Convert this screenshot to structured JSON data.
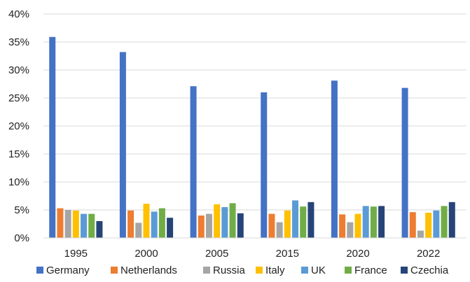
{
  "chart_data": {
    "type": "bar",
    "categories": [
      "1995",
      "2000",
      "2005",
      "2015",
      "2020",
      "2022"
    ],
    "series": [
      {
        "name": "Germany",
        "color": "#4472C4",
        "values": [
          35.9,
          33.2,
          27.1,
          26.0,
          28.1,
          26.8
        ]
      },
      {
        "name": "Netherlands",
        "color": "#ED7D31",
        "values": [
          5.3,
          4.9,
          4.0,
          4.3,
          4.2,
          4.6
        ]
      },
      {
        "name": "Russia",
        "color": "#A5A5A5",
        "values": [
          5.0,
          2.7,
          4.3,
          2.8,
          2.8,
          1.3
        ]
      },
      {
        "name": "Italy",
        "color": "#FFC000",
        "values": [
          4.9,
          6.1,
          6.0,
          4.9,
          4.3,
          4.5
        ]
      },
      {
        "name": "UK",
        "color": "#5B9BD5",
        "values": [
          4.3,
          4.7,
          5.5,
          6.7,
          5.7,
          4.9
        ]
      },
      {
        "name": "France",
        "color": "#70AD47",
        "values": [
          4.3,
          5.3,
          6.2,
          5.6,
          5.6,
          5.7
        ]
      },
      {
        "name": "Czechia",
        "color": "#264478",
        "values": [
          3.0,
          3.6,
          4.4,
          6.4,
          5.7,
          6.4
        ]
      }
    ],
    "y_ticks": [
      "0%",
      "5%",
      "10%",
      "15%",
      "20%",
      "25%",
      "30%",
      "35%",
      "40%"
    ],
    "ylim": [
      0,
      40
    ],
    "grid": true,
    "gridline_color": "#D9D9D9",
    "legend_position": "bottom"
  }
}
